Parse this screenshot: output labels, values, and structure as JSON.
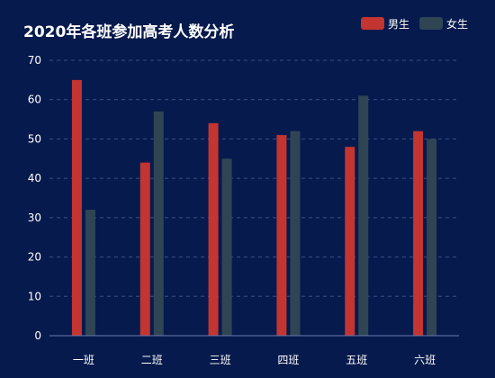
{
  "chart_data": {
    "type": "bar",
    "title": "2020年各班参加高考人数分析",
    "categories": [
      "一班",
      "二班",
      "三班",
      "四班",
      "五班",
      "六班"
    ],
    "series": [
      {
        "name": "男生",
        "values": [
          65,
          44,
          54,
          51,
          48,
          52
        ],
        "color": "#c23531"
      },
      {
        "name": "女生",
        "values": [
          32,
          57,
          45,
          52,
          61,
          50
        ],
        "color": "#2f4554"
      }
    ],
    "ylim": [
      0,
      70
    ],
    "yticks": [
      0,
      10,
      20,
      30,
      40,
      50,
      60,
      70
    ],
    "grid": true,
    "legend_position": "top-right"
  }
}
